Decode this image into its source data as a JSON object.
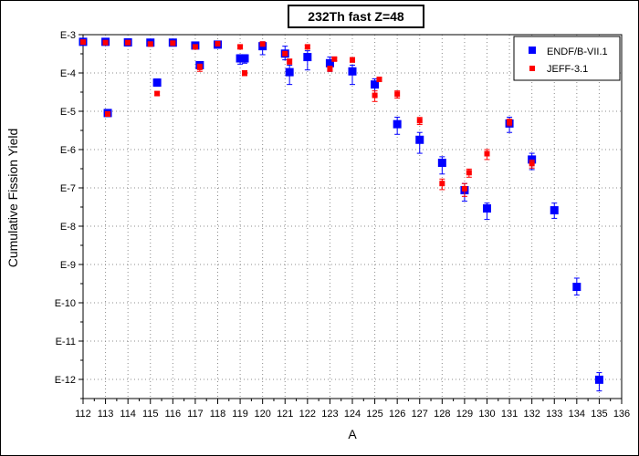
{
  "chart_data": {
    "type": "scatter",
    "title": "232Th fast Z=48",
    "xlabel": "A",
    "ylabel": "Cumulative Fission Yield",
    "xlim": [
      112,
      136
    ],
    "ylim_log10": [
      -12.5,
      -3
    ],
    "yscale": "log",
    "grid": true,
    "legend_position": "top-right",
    "x_ticks": [
      "112",
      "113",
      "114",
      "115",
      "116",
      "117",
      "118",
      "119",
      "120",
      "121",
      "122",
      "123",
      "124",
      "125",
      "126",
      "127",
      "128",
      "129",
      "130",
      "131",
      "132",
      "133",
      "134",
      "135",
      "136"
    ],
    "y_ticks": [
      {
        "label": "E-3",
        "exp": -3
      },
      {
        "label": "E-4",
        "exp": -4
      },
      {
        "label": "E-5",
        "exp": -5
      },
      {
        "label": "E-6",
        "exp": -6
      },
      {
        "label": "E-7",
        "exp": -7
      },
      {
        "label": "E-8",
        "exp": -8
      },
      {
        "label": "E-9",
        "exp": -9
      },
      {
        "label": "E-10",
        "exp": -10
      },
      {
        "label": "E-11",
        "exp": -11
      },
      {
        "label": "E-12",
        "exp": -12
      }
    ],
    "series": [
      {
        "name": "ENDF/B-VII.1",
        "color": "#0000ff",
        "marker": "square",
        "points": [
          {
            "x": 112,
            "y": 0.00065,
            "lo": 0.00055,
            "hi": 0.0008
          },
          {
            "x": 113,
            "y": 0.00065,
            "lo": 0.00055,
            "hi": 0.0008
          },
          {
            "x": 113.1,
            "y": 9e-06,
            "lo": 8e-06,
            "hi": 1.1e-05
          },
          {
            "x": 114,
            "y": 0.00063,
            "lo": 0.00055,
            "hi": 0.00075
          },
          {
            "x": 115,
            "y": 0.00062,
            "lo": 0.0005,
            "hi": 0.00075
          },
          {
            "x": 115.3,
            "y": 5.6e-05,
            "lo": 4.5e-05,
            "hi": 7e-05
          },
          {
            "x": 116,
            "y": 0.00062,
            "lo": 0.00055,
            "hi": 0.00072
          },
          {
            "x": 117,
            "y": 0.00052,
            "lo": 0.00045,
            "hi": 0.0006
          },
          {
            "x": 117.2,
            "y": 0.00016,
            "lo": 0.00013,
            "hi": 0.00019
          },
          {
            "x": 118,
            "y": 0.00055,
            "lo": 0.00045,
            "hi": 0.00065
          },
          {
            "x": 119,
            "y": 0.00024,
            "lo": 0.00017,
            "hi": 0.0003
          },
          {
            "x": 119.2,
            "y": 0.00024,
            "lo": 0.00018,
            "hi": 0.0003
          },
          {
            "x": 120,
            "y": 0.0005,
            "lo": 0.0003,
            "hi": 0.00065
          },
          {
            "x": 121,
            "y": 0.00032,
            "lo": 0.00022,
            "hi": 0.0005
          },
          {
            "x": 121.2,
            "y": 0.000105,
            "lo": 5e-05,
            "hi": 0.00016
          },
          {
            "x": 122,
            "y": 0.00026,
            "lo": 0.00012,
            "hi": 0.00038
          },
          {
            "x": 123,
            "y": 0.00018,
            "lo": 0.00011,
            "hi": 0.00026
          },
          {
            "x": 124,
            "y": 0.00011,
            "lo": 5e-05,
            "hi": 0.00016
          },
          {
            "x": 125,
            "y": 5e-05,
            "lo": 2.5e-05,
            "hi": 7e-05
          },
          {
            "x": 126,
            "y": 4.6e-06,
            "lo": 2.5e-06,
            "hi": 7e-06
          },
          {
            "x": 127,
            "y": 1.8e-06,
            "lo": 8e-07,
            "hi": 2.8e-06
          },
          {
            "x": 128,
            "y": 4.5e-07,
            "lo": 2.3e-07,
            "hi": 6.5e-07
          },
          {
            "x": 129,
            "y": 8.7e-08,
            "lo": 4.5e-08,
            "hi": 1.3e-07
          },
          {
            "x": 130,
            "y": 2.9e-08,
            "lo": 1.5e-08,
            "hi": 4e-08
          },
          {
            "x": 131,
            "y": 4.8e-06,
            "lo": 2.8e-06,
            "hi": 7e-06
          },
          {
            "x": 132,
            "y": 5.5e-07,
            "lo": 3e-07,
            "hi": 8e-07
          },
          {
            "x": 133,
            "y": 2.6e-08,
            "lo": 1.6e-08,
            "hi": 4e-08
          },
          {
            "x": 134,
            "y": 2.6e-10,
            "lo": 1.6e-10,
            "hi": 4.4e-10
          },
          {
            "x": 135,
            "y": 9.8e-13,
            "lo": 5e-13,
            "hi": 1.5e-12
          }
        ]
      },
      {
        "name": "JEFF-3.1",
        "color": "#ff0000",
        "marker": "square",
        "points": [
          {
            "x": 112,
            "y": 0.00064,
            "lo": 0.00058,
            "hi": 0.0007
          },
          {
            "x": 113,
            "y": 0.00062,
            "lo": 0.00056,
            "hi": 0.00068
          },
          {
            "x": 113.1,
            "y": 8.5e-06,
            "lo": 7.5e-06,
            "hi": 9.5e-06
          },
          {
            "x": 114,
            "y": 0.00062,
            "lo": 0.00056,
            "hi": 0.00068
          },
          {
            "x": 115,
            "y": 0.00057,
            "lo": 0.00051,
            "hi": 0.00063
          },
          {
            "x": 115.3,
            "y": 2.9e-05,
            "lo": 2.6e-05,
            "hi": 3.2e-05
          },
          {
            "x": 116,
            "y": 0.0006,
            "lo": 0.00054,
            "hi": 0.00066
          },
          {
            "x": 117,
            "y": 0.00048,
            "lo": 0.00043,
            "hi": 0.00053
          },
          {
            "x": 117.2,
            "y": 0.00014,
            "lo": 0.00011,
            "hi": 0.00017
          },
          {
            "x": 118,
            "y": 0.00058,
            "lo": 0.00052,
            "hi": 0.00064
          },
          {
            "x": 119,
            "y": 0.00048,
            "lo": 0.00043,
            "hi": 0.00053
          },
          {
            "x": 119.2,
            "y": 0.0001,
            "lo": 8.5e-05,
            "hi": 0.000115
          },
          {
            "x": 120,
            "y": 0.00057,
            "lo": 0.00051,
            "hi": 0.00063
          },
          {
            "x": 121,
            "y": 0.00032,
            "lo": 0.00029,
            "hi": 0.00035
          },
          {
            "x": 121.2,
            "y": 0.0002,
            "lo": 0.00017,
            "hi": 0.00023
          },
          {
            "x": 122,
            "y": 0.00048,
            "lo": 0.00043,
            "hi": 0.00053
          },
          {
            "x": 123,
            "y": 0.00013,
            "lo": 0.00011,
            "hi": 0.00015
          },
          {
            "x": 123.2,
            "y": 0.00023,
            "lo": 0.00021,
            "hi": 0.00025
          },
          {
            "x": 124,
            "y": 0.00022,
            "lo": 0.00019,
            "hi": 0.00025
          },
          {
            "x": 125,
            "y": 2.6e-05,
            "lo": 1.8e-05,
            "hi": 3.4e-05
          },
          {
            "x": 125.2,
            "y": 6.8e-05,
            "lo": 6e-05,
            "hi": 7.6e-05
          },
          {
            "x": 126,
            "y": 2.8e-05,
            "lo": 2.2e-05,
            "hi": 3.4e-05
          },
          {
            "x": 127,
            "y": 5.7e-06,
            "lo": 4.5e-06,
            "hi": 6.9e-06
          },
          {
            "x": 128,
            "y": 1.3e-07,
            "lo": 9e-08,
            "hi": 1.7e-07
          },
          {
            "x": 129,
            "y": 9.5e-08,
            "lo": 6e-08,
            "hi": 1.3e-07
          },
          {
            "x": 129.2,
            "y": 2.5e-07,
            "lo": 1.9e-07,
            "hi": 3.1e-07
          },
          {
            "x": 130,
            "y": 7.8e-07,
            "lo": 5.5e-07,
            "hi": 1e-06
          },
          {
            "x": 131,
            "y": 5.2e-06,
            "lo": 4.2e-06,
            "hi": 6.2e-06
          },
          {
            "x": 132,
            "y": 4.3e-07,
            "lo": 3.3e-07,
            "hi": 5.3e-07
          }
        ]
      }
    ]
  }
}
